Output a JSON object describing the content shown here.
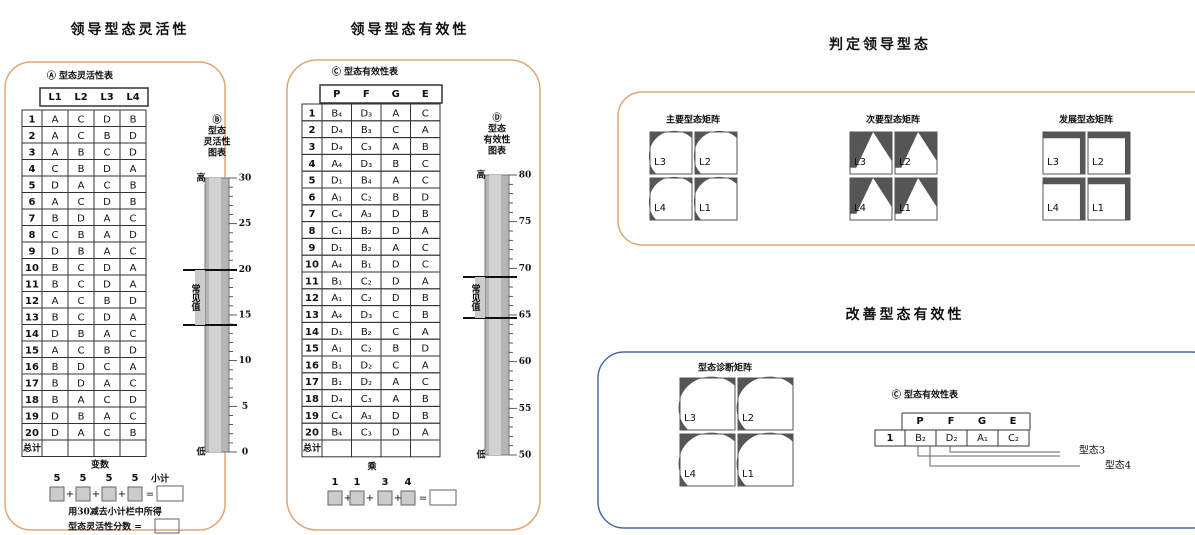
{
  "left": {
    "title": "领导型态灵活性",
    "table_title": "Ⓐ 型态灵活性表",
    "headers": [
      "L1",
      "L2",
      "L3",
      "L4"
    ],
    "rows": [
      [
        "1",
        "A",
        "C",
        "D",
        "B"
      ],
      [
        "2",
        "A",
        "C",
        "B",
        "D"
      ],
      [
        "3",
        "A",
        "B",
        "C",
        "D"
      ],
      [
        "4",
        "C",
        "B",
        "D",
        "A"
      ],
      [
        "5",
        "D",
        "A",
        "C",
        "B"
      ],
      [
        "6",
        "A",
        "C",
        "D",
        "B"
      ],
      [
        "7",
        "B",
        "D",
        "A",
        "C"
      ],
      [
        "8",
        "C",
        "B",
        "A",
        "D"
      ],
      [
        "9",
        "D",
        "B",
        "A",
        "C"
      ],
      [
        "10",
        "B",
        "C",
        "D",
        "A"
      ],
      [
        "11",
        "B",
        "C",
        "D",
        "A"
      ],
      [
        "12",
        "A",
        "C",
        "B",
        "D"
      ],
      [
        "13",
        "B",
        "C",
        "D",
        "A"
      ],
      [
        "14",
        "D",
        "B",
        "A",
        "C"
      ],
      [
        "15",
        "A",
        "C",
        "B",
        "D"
      ],
      [
        "16",
        "B",
        "D",
        "C",
        "A"
      ],
      [
        "17",
        "B",
        "D",
        "A",
        "C"
      ],
      [
        "18",
        "B",
        "A",
        "C",
        "D"
      ],
      [
        "19",
        "D",
        "B",
        "A",
        "C"
      ],
      [
        "20",
        "D",
        "A",
        "C",
        "B"
      ]
    ],
    "total": "总计",
    "variable": "变数",
    "weights": [
      "5",
      "5",
      "5",
      "5"
    ],
    "subtotal": "小计",
    "note": "用30减去小计栏中所得",
    "score": "型态灵活性分数 =",
    "chart_title": [
      "Ⓑ",
      "型态",
      "灵活性",
      "图表"
    ],
    "high": "高",
    "low": "低",
    "common": "常见值",
    "scale": [
      "30",
      "25",
      "20",
      "15",
      "10",
      "5",
      "0"
    ]
  },
  "middle": {
    "title": "领导型态有效性",
    "table_title": "Ⓒ 型态有效性表",
    "headers": [
      "P",
      "F",
      "G",
      "E"
    ],
    "rows": [
      [
        "1",
        "B₄",
        "D₃",
        "A",
        "C"
      ],
      [
        "2",
        "D₄",
        "B₃",
        "C",
        "A"
      ],
      [
        "3",
        "D₄",
        "C₃",
        "A",
        "B"
      ],
      [
        "4",
        "A₄",
        "D₃",
        "B",
        "C"
      ],
      [
        "5",
        "D₁",
        "B₄",
        "A",
        "C"
      ],
      [
        "6",
        "A₁",
        "C₂",
        "B",
        "D"
      ],
      [
        "7",
        "C₄",
        "A₃",
        "D",
        "B"
      ],
      [
        "8",
        "C₁",
        "B₂",
        "D",
        "A"
      ],
      [
        "9",
        "D₁",
        "B₂",
        "A",
        "C"
      ],
      [
        "10",
        "A₄",
        "B₁",
        "D",
        "C"
      ],
      [
        "11",
        "B₁",
        "C₂",
        "D",
        "A"
      ],
      [
        "12",
        "A₁",
        "C₂",
        "D",
        "B"
      ],
      [
        "13",
        "A₄",
        "D₃",
        "C",
        "B"
      ],
      [
        "14",
        "D₁",
        "B₂",
        "C",
        "A"
      ],
      [
        "15",
        "A₁",
        "C₂",
        "B",
        "D"
      ],
      [
        "16",
        "B₁",
        "D₂",
        "C",
        "A"
      ],
      [
        "17",
        "B₁",
        "D₂",
        "A",
        "C"
      ],
      [
        "18",
        "D₄",
        "C₃",
        "A",
        "B"
      ],
      [
        "19",
        "C₄",
        "A₃",
        "D",
        "B"
      ],
      [
        "20",
        "B₄",
        "C₃",
        "D",
        "A"
      ]
    ],
    "total": "总计",
    "multiply": "乘",
    "weights": [
      "1",
      "1",
      "3",
      "4"
    ],
    "chart_title": [
      "Ⓓ",
      "型态",
      "有效性",
      "图表"
    ],
    "high": "高",
    "low": "低",
    "common": "常见值",
    "scale": [
      "80",
      "75",
      "70",
      "65",
      "60",
      "55",
      "50"
    ]
  },
  "right": {
    "title": "判定领导型态",
    "matrices": [
      {
        "title": "主要型态矩阵",
        "cells": [
          "L3",
          "L2",
          "L4",
          "L1"
        ]
      },
      {
        "title": "次要型态矩阵",
        "cells": [
          "L3",
          "L2",
          "L4",
          "L1"
        ]
      },
      {
        "title": "发展型态矩阵",
        "cells": [
          "L3",
          "L2",
          "L4",
          "L1"
        ]
      }
    ]
  },
  "improve": {
    "title": "改善型态有效性",
    "matrix_title": "型态诊断矩阵",
    "cells": [
      "L3",
      "L2",
      "L4",
      "L1"
    ],
    "table_title": "Ⓒ 型态有效性表",
    "headers": [
      "P",
      "F",
      "G",
      "E"
    ],
    "row": [
      "1",
      "B₂",
      "D₂",
      "A₁",
      "C₂"
    ],
    "labels": [
      "型态3",
      "型态4"
    ]
  }
}
